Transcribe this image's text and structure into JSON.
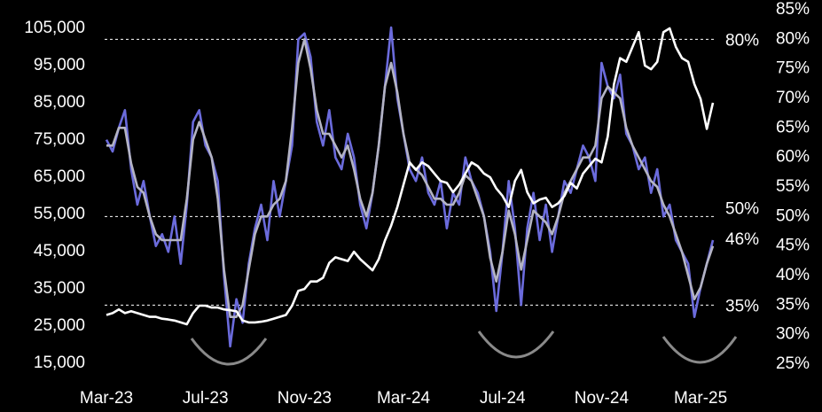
{
  "chart_data": {
    "type": "line",
    "categories": [
      "Mar-23",
      null,
      null,
      null,
      null,
      null,
      null,
      null,
      null,
      null,
      null,
      null,
      null,
      null,
      null,
      null,
      "Jul-23",
      null,
      null,
      null,
      null,
      null,
      null,
      null,
      null,
      null,
      null,
      null,
      null,
      null,
      null,
      null,
      "Nov-23",
      null,
      null,
      null,
      null,
      null,
      null,
      null,
      null,
      null,
      null,
      null,
      null,
      null,
      null,
      null,
      "Mar-24",
      null,
      null,
      null,
      null,
      null,
      null,
      null,
      null,
      null,
      null,
      null,
      null,
      null,
      null,
      null,
      "Jul-24",
      null,
      null,
      null,
      null,
      null,
      null,
      null,
      null,
      null,
      null,
      null,
      null,
      null,
      null,
      null,
      "Nov-24",
      null,
      null,
      null,
      null,
      null,
      null,
      null,
      null,
      null,
      null,
      null,
      null,
      null,
      null,
      null,
      "Mar-25",
      null,
      null
    ],
    "series": [
      {
        "color": "#6b6bdc",
        "axis": "y2",
        "values": [
          63,
          61,
          65,
          68,
          58,
          52,
          56,
          50,
          45,
          47,
          44,
          50,
          42,
          52,
          66,
          68,
          62,
          60,
          56,
          40,
          28,
          36,
          32,
          42,
          48,
          52,
          46,
          56,
          50,
          56,
          62,
          80,
          81,
          77,
          66,
          62,
          68,
          60,
          58,
          64,
          60,
          52,
          48,
          54,
          62,
          72,
          82,
          70,
          64,
          58,
          56,
          60,
          54,
          52,
          56,
          48,
          54,
          52,
          60,
          56,
          54,
          50,
          44,
          34,
          44,
          56,
          48,
          35,
          48,
          54,
          46,
          52,
          44,
          50,
          56,
          54,
          58,
          62,
          60,
          56,
          76,
          72,
          70,
          74,
          64,
          62,
          58,
          60,
          54,
          58,
          50,
          52,
          46,
          44,
          42,
          33,
          38,
          42,
          46
        ]
      },
      {
        "color": "#b4b4c4",
        "axis": "y2",
        "values": [
          62,
          62,
          65,
          65,
          59,
          55,
          54,
          50,
          47,
          46,
          46,
          46,
          46,
          53,
          63,
          66,
          63,
          60,
          53,
          41,
          33,
          33,
          35,
          41,
          47,
          50,
          50,
          52,
          53,
          56,
          65,
          76,
          80,
          75,
          68,
          64,
          64,
          62,
          60,
          62,
          58,
          53,
          50,
          54,
          62,
          72,
          76,
          71,
          64,
          59,
          58,
          57,
          55,
          53,
          53,
          52,
          52,
          54,
          57,
          56,
          53,
          50,
          43,
          39,
          44,
          51,
          47,
          41,
          46,
          51,
          50,
          49,
          47,
          50,
          54,
          56,
          58,
          60,
          60,
          62,
          70,
          72,
          71,
          70,
          65,
          62,
          60,
          58,
          56,
          55,
          52,
          50,
          47,
          44,
          40,
          36,
          38,
          42,
          45
        ]
      },
      {
        "color": "#ffffff",
        "axis": "y",
        "values": [
          28000,
          28500,
          29500,
          28500,
          29000,
          28500,
          28000,
          27500,
          27500,
          27000,
          26800,
          26500,
          26000,
          25500,
          28500,
          30500,
          30500,
          30000,
          30000,
          29500,
          29300,
          29000,
          26500,
          26000,
          26000,
          26200,
          26500,
          27000,
          27500,
          28000,
          30500,
          34500,
          35000,
          37000,
          37000,
          38000,
          42000,
          43500,
          43000,
          42500,
          45000,
          43000,
          41500,
          40000,
          43000,
          48000,
          52000,
          57000,
          63000,
          69000,
          67000,
          69000,
          68000,
          66000,
          64000,
          63500,
          61000,
          63000,
          66000,
          69000,
          68000,
          66000,
          65000,
          62000,
          60000,
          57000,
          64000,
          67000,
          61000,
          58000,
          59000,
          59500,
          57000,
          58000,
          60000,
          63500,
          62000,
          66000,
          68000,
          70000,
          69000,
          76000,
          90000,
          97000,
          96000,
          100000,
          104000,
          95000,
          94000,
          96000,
          104000,
          105000,
          100000,
          97000,
          96000,
          90000,
          86000,
          78000,
          85000
        ]
      }
    ],
    "ylim": [
      14800,
      110000
    ],
    "yticks": [
      {
        "value": 15000,
        "label": "15,000"
      },
      {
        "value": 25000,
        "label": "25,000"
      },
      {
        "value": 35000,
        "label": "35,000"
      },
      {
        "value": 45000,
        "label": "45,000"
      },
      {
        "value": 55000,
        "label": "55,000"
      },
      {
        "value": 65000,
        "label": "65,000"
      },
      {
        "value": 75000,
        "label": "75,000"
      },
      {
        "value": 85000,
        "label": "85,000"
      },
      {
        "value": 95000,
        "label": "95,000"
      },
      {
        "value": 105000,
        "label": "105,000"
      }
    ],
    "y2lim": [
      25,
      85
    ],
    "y2ticks": [
      {
        "value": 25,
        "label": "25%"
      },
      {
        "value": 30,
        "label": "30%"
      },
      {
        "value": 35,
        "label": "35%"
      },
      {
        "value": 40,
        "label": "40%"
      },
      {
        "value": 45,
        "label": "45%"
      },
      {
        "value": 50,
        "label": "50%"
      },
      {
        "value": 55,
        "label": "55%"
      },
      {
        "value": 60,
        "label": "60%"
      },
      {
        "value": 65,
        "label": "65%"
      },
      {
        "value": 70,
        "label": "70%"
      },
      {
        "value": 75,
        "label": "75%"
      },
      {
        "value": 80,
        "label": "80%"
      },
      {
        "value": 85,
        "label": "85%"
      }
    ],
    "reference_lines": [
      {
        "value": 80,
        "label": "80%"
      },
      {
        "value": 50,
        "label": "50%"
      },
      {
        "value": 35,
        "label": "35%"
      }
    ],
    "annotations": [
      {
        "value": 46,
        "label": "46%"
      }
    ]
  }
}
